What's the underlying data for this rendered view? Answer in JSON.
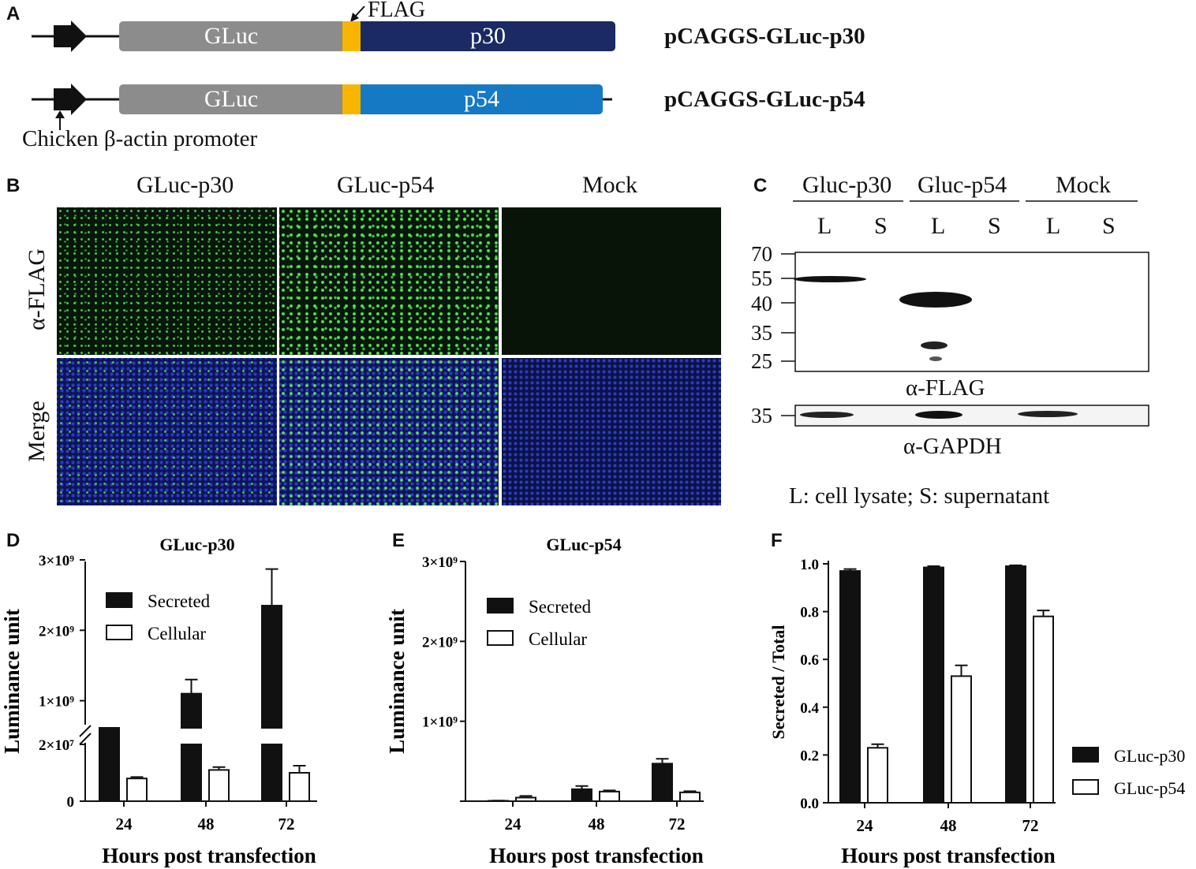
{
  "panel_letters": {
    "a": "A",
    "b": "B",
    "c": "C",
    "d": "D",
    "e": "E",
    "f": "F"
  },
  "panel_a": {
    "flag_label": "FLAG",
    "construct1": {
      "gluc": "GLuc",
      "insert": "p30",
      "name": "pCAGGS-GLuc-p30",
      "insert_color": "#1b2a63"
    },
    "construct2": {
      "gluc": "GLuc",
      "insert": "p54",
      "name": "pCAGGS-GLuc-p54",
      "insert_color": "#1579c4"
    },
    "promoter_label": "Chicken β-actin promoter",
    "gluc_color": "#8c8c8c",
    "flag_color": "#f7b500"
  },
  "panel_b": {
    "columns": [
      "GLuc-p30",
      "GLuc-p54",
      "Mock"
    ],
    "rows": [
      "α-FLAG",
      "Merge"
    ]
  },
  "panel_c": {
    "groups": [
      "Gluc-p30",
      "Gluc-p54",
      "Mock"
    ],
    "lanes": [
      "L",
      "S",
      "L",
      "S",
      "L",
      "S"
    ],
    "mw_markers": [
      "70",
      "55",
      "40",
      "35",
      "25"
    ],
    "gapdh_marker": "35",
    "blot1_label": "α-FLAG",
    "blot2_label": "α-GAPDH",
    "legend": "L: cell lysate; S: supernatant"
  },
  "chart_data": [
    {
      "type": "bar",
      "title": "GLuc-p30",
      "xlabel": "Hours post transfection",
      "ylabel": "Luminance unit",
      "categories": [
        "24",
        "48",
        "72"
      ],
      "y_axis": "broken",
      "yticks_lower": [
        "0",
        "2×10⁷"
      ],
      "yticks_upper": [
        "1×10⁹",
        "2×10⁹",
        "3×10⁹"
      ],
      "series": [
        {
          "name": "Secreted",
          "values": [
            350000000,
            1100000000,
            2350000000
          ],
          "errors": [
            20000000,
            200000000,
            520000000
          ],
          "color": "#111111"
        },
        {
          "name": "Cellular",
          "values": [
            8000000,
            11000000,
            10000000
          ],
          "errors": [
            500000,
            1000000,
            2500000
          ],
          "color": "#ffffff"
        }
      ],
      "legend": "upper-left"
    },
    {
      "type": "bar",
      "title": "GLuc-p54",
      "xlabel": "Hours post transfection",
      "ylabel": "Luminance unit",
      "categories": [
        "24",
        "48",
        "72"
      ],
      "yticks": [
        "1×10⁹",
        "2×10⁹",
        "3×10⁹"
      ],
      "ylim": [
        0,
        3000000000
      ],
      "series": [
        {
          "name": "Secreted",
          "values": [
            5000000,
            150000000,
            470000000
          ],
          "errors": [
            3000000,
            40000000,
            60000000
          ],
          "color": "#111111"
        },
        {
          "name": "Cellular",
          "values": [
            45000000,
            120000000,
            110000000
          ],
          "errors": [
            20000000,
            15000000,
            15000000
          ],
          "color": "#ffffff"
        }
      ],
      "legend": "upper-left"
    },
    {
      "type": "bar",
      "title": "",
      "xlabel": "Hours post transfection",
      "ylabel": "Secreted / Total",
      "categories": [
        "24",
        "48",
        "72"
      ],
      "yticks": [
        "0.0",
        "0.2",
        "0.4",
        "0.6",
        "0.8",
        "1.0"
      ],
      "ylim": [
        0,
        1.0
      ],
      "series": [
        {
          "name": "GLuc-p30",
          "values": [
            0.97,
            0.985,
            0.99
          ],
          "errors": [
            0.008,
            0.005,
            0.004
          ],
          "color": "#111111"
        },
        {
          "name": "GLuc-p54",
          "values": [
            0.23,
            0.53,
            0.78
          ],
          "errors": [
            0.015,
            0.045,
            0.025
          ],
          "color": "#ffffff"
        }
      ],
      "legend": "lower-right"
    }
  ]
}
